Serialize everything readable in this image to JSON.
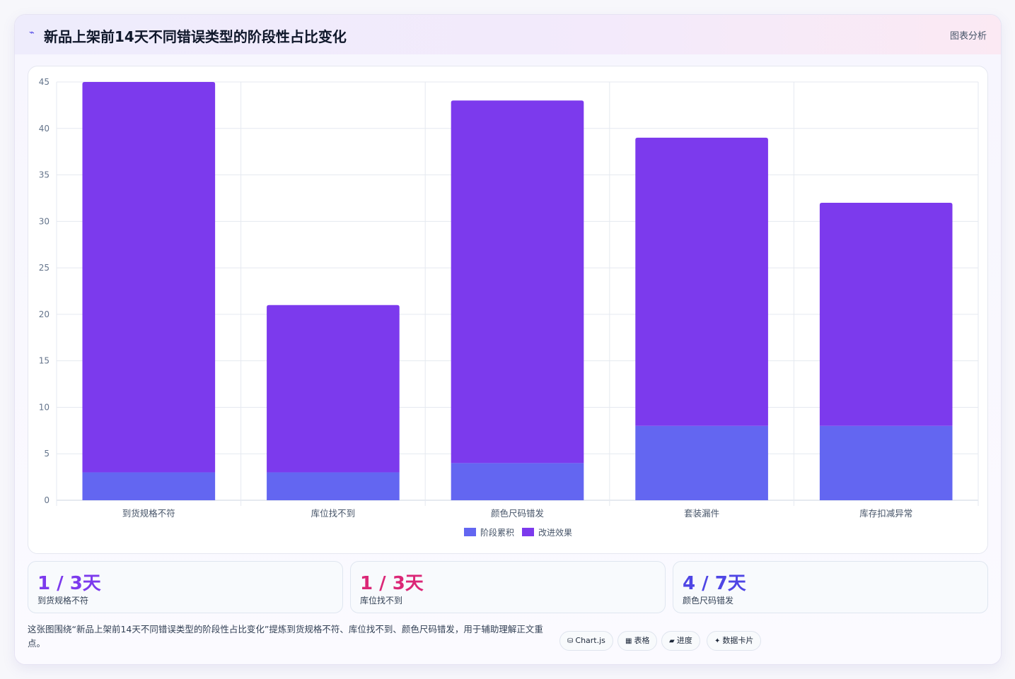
{
  "header": {
    "icon": "trend-line-icon",
    "icon_glyph": "⌁",
    "title": "新品上架前14天不同错误类型的阶段性占比变化",
    "tag": "图表分析"
  },
  "chart_data": {
    "type": "bar",
    "stacked": true,
    "categories": [
      "到货规格不符",
      "库位找不到",
      "颜色尺码错发",
      "套装漏件",
      "库存扣减异常"
    ],
    "series": [
      {
        "name": "阶段累积",
        "color": "#6366f1",
        "values": [
          3,
          3,
          4,
          8,
          8
        ]
      },
      {
        "name": "改进效果",
        "color": "#7c3aed",
        "values": [
          42,
          18,
          39,
          31,
          24
        ]
      }
    ],
    "ylim": [
      0,
      45
    ],
    "yticks": [
      0,
      5,
      10,
      15,
      20,
      25,
      30,
      35,
      40,
      45
    ],
    "grid": true,
    "legend_position": "bottom"
  },
  "stats": [
    {
      "value": "1 / 3天",
      "label": "到货规格不符",
      "color": "#7c3aed"
    },
    {
      "value": "1 / 3天",
      "label": "库位找不到",
      "color": "#db2777"
    },
    {
      "value": "4 / 7天",
      "label": "颜色尺码错发",
      "color": "#4f46e5"
    }
  ],
  "summary": "这张图围绕“新品上架前14天不同错误类型的阶段性占比变化”提炼到货规格不符、库位找不到、颜色尺码错发，用于辅助理解正文重点。",
  "chips": [
    {
      "icon": "database-icon",
      "glyph": "⛁",
      "label": "Chart.js"
    },
    {
      "icon": "table-icon",
      "glyph": "▦",
      "label": "表格"
    },
    {
      "icon": "progress-icon",
      "glyph": "▰",
      "label": "进度"
    },
    {
      "icon": "sparkle-icon",
      "glyph": "✦",
      "label": "数据卡片"
    }
  ]
}
